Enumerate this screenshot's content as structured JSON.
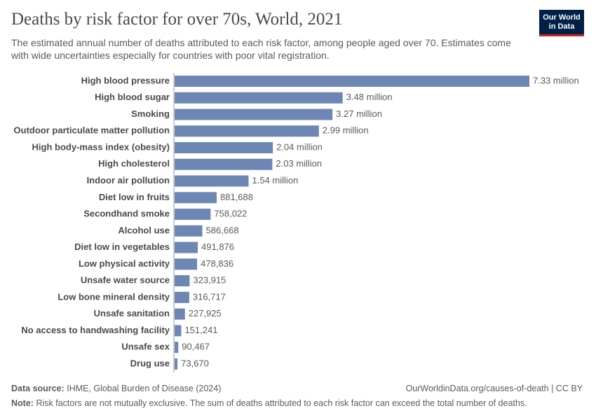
{
  "chart_data": {
    "type": "bar",
    "orientation": "horizontal",
    "title": "Deaths by risk factor for over 70s, World, 2021",
    "subtitle": "The estimated annual number of deaths attributed to each risk factor, among people aged over 70. Estimates come with wide uncertainties especially for countries with poor vital registration.",
    "logo": [
      "Our World",
      "in Data"
    ],
    "categories": [
      "High blood pressure",
      "High blood sugar",
      "Smoking",
      "Outdoor particulate matter pollution",
      "High body-mass index (obesity)",
      "High cholesterol",
      "Indoor air pollution",
      "Diet low in fruits",
      "Secondhand smoke",
      "Alcohol use",
      "Diet low in vegetables",
      "Low physical activity",
      "Unsafe water source",
      "Low bone mineral density",
      "Unsafe sanitation",
      "No access to handwashing facility",
      "Unsafe sex",
      "Drug use"
    ],
    "values": [
      7330000,
      3480000,
      3270000,
      2990000,
      2040000,
      2030000,
      1540000,
      881688,
      758022,
      586668,
      491876,
      478836,
      323915,
      316717,
      227925,
      151241,
      90467,
      73670
    ],
    "value_labels": [
      "7.33 million",
      "3.48 million",
      "3.27 million",
      "2.99 million",
      "2.04 million",
      "2.03 million",
      "1.54 million",
      "881,688",
      "758,022",
      "586,668",
      "491,876",
      "478,836",
      "323,915",
      "316,717",
      "227,925",
      "151,241",
      "90,467",
      "73,670"
    ],
    "color": "#6d86b3",
    "source_label": "Data source:",
    "source": "IHME, Global Burden of Disease (2024)",
    "url": "OurWorldinData.org/causes-of-death | CC BY",
    "note_label": "Note:",
    "note": "Risk factors are not mutually exclusive. The sum of deaths attributed to each risk factor can exceed the total number of deaths."
  }
}
